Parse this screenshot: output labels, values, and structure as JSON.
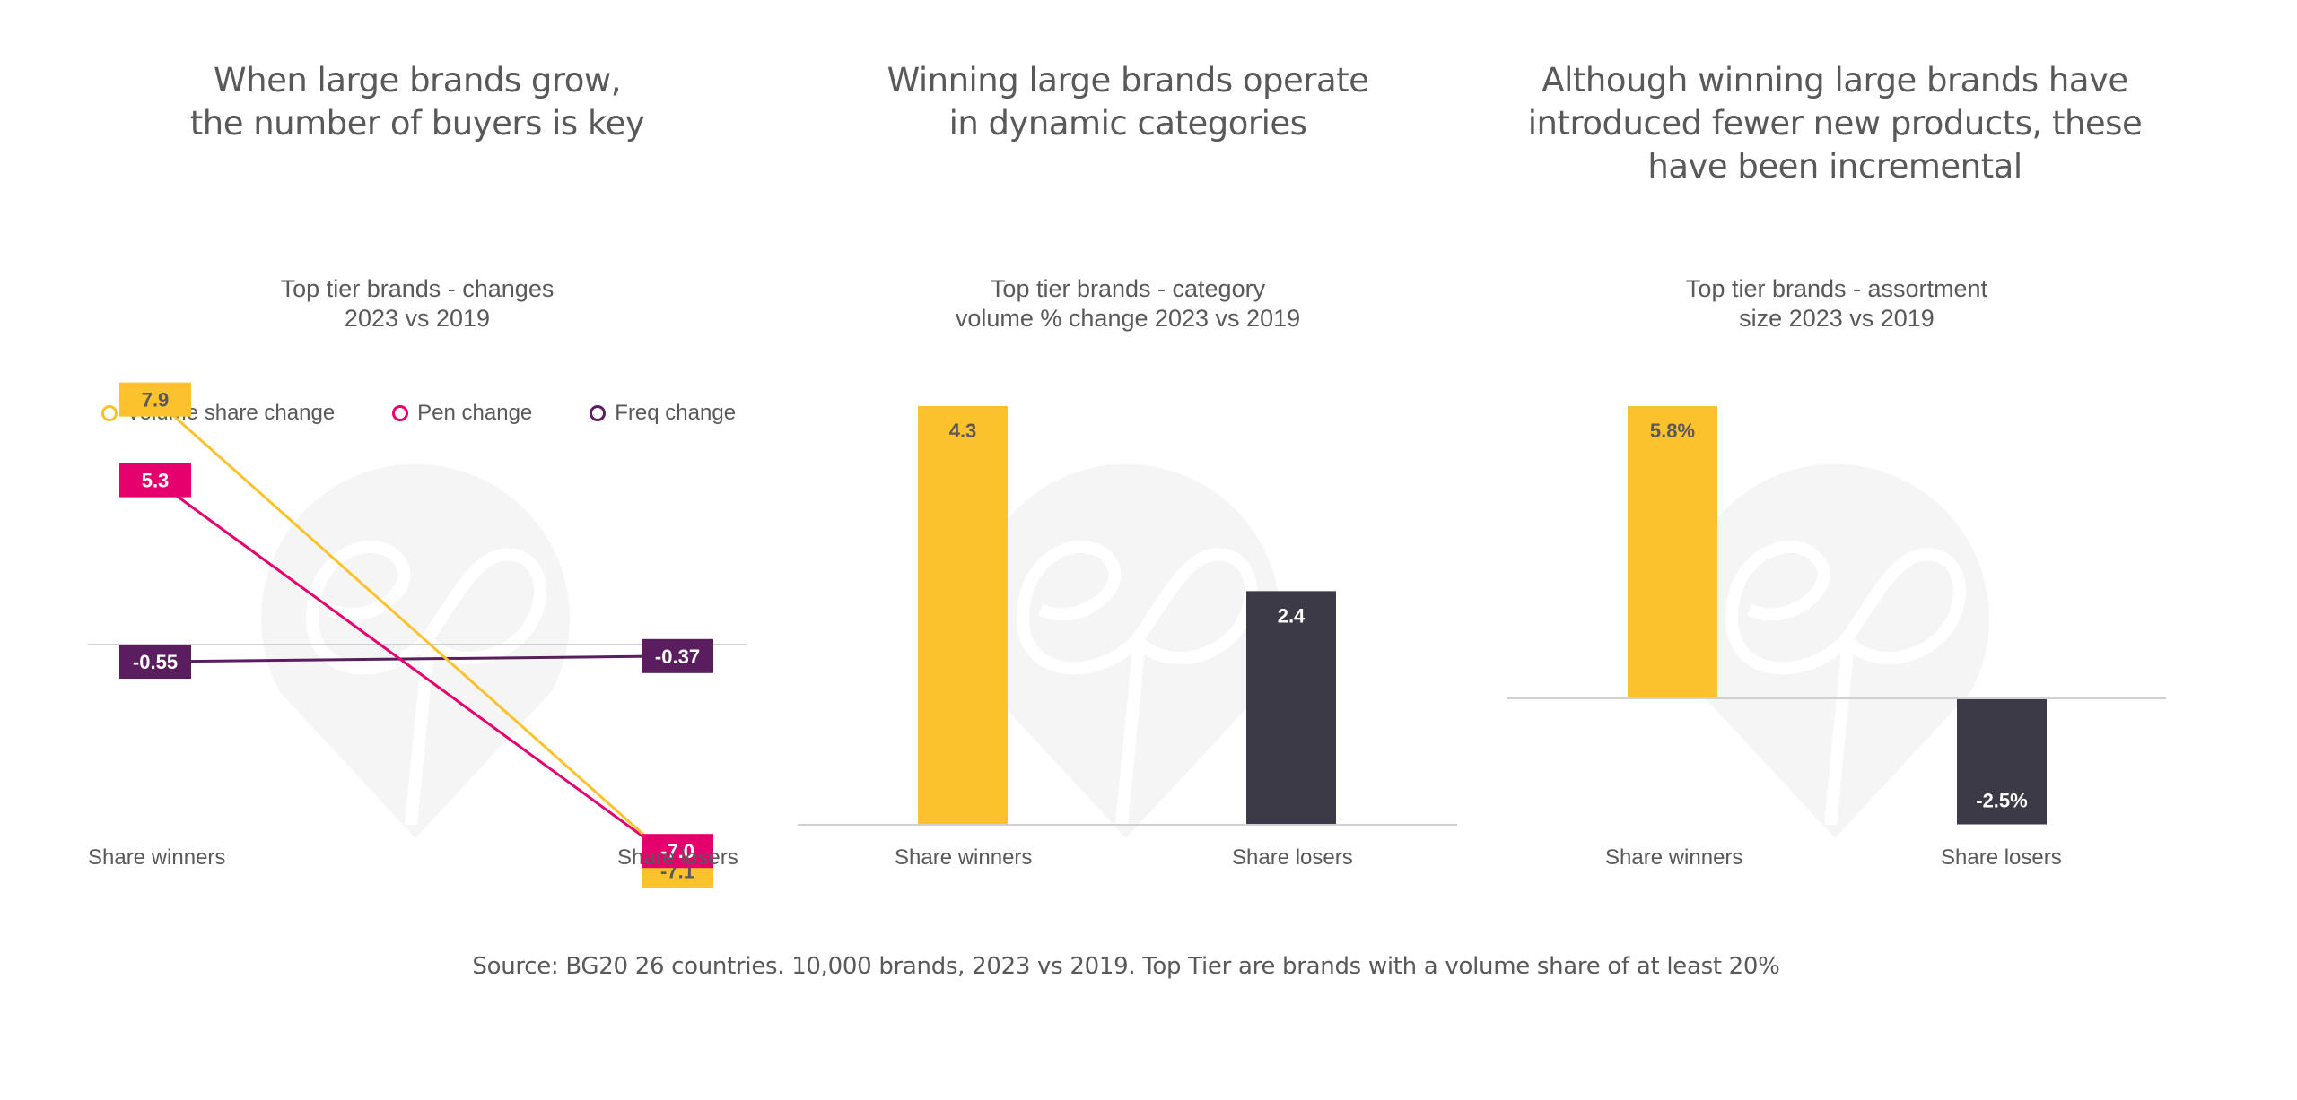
{
  "headings": [
    "When large brands grow,\nthe number of buyers is key",
    "Winning large brands operate\nin dynamic categories",
    "Although winning large brands have\nintroduced fewer new products, these\nhave been incremental"
  ],
  "source_note": "Source: BG20 26 countries. 10,000 brands, 2023 vs 2019. Top Tier are brands with a volume share of at least 20%",
  "colors": {
    "yellow": "#FBC22D",
    "pink": "#E6006E",
    "purple": "#5A1E5E",
    "dark": "#3C3A47",
    "text": "#595959"
  },
  "chart_data": [
    {
      "type": "line",
      "title": "Top tier brands - changes\n2023 vs 2019",
      "categories": [
        "Share winners",
        "Share losers"
      ],
      "series": [
        {
          "name": "Volume share change",
          "values": [
            7.9,
            -7.1
          ],
          "labels": [
            "7.9",
            "-7.1"
          ],
          "color": "#FBC22D"
        },
        {
          "name": "Pen change",
          "values": [
            5.3,
            -7.0
          ],
          "labels": [
            "5.3",
            "-7.0"
          ],
          "color": "#E6006E"
        },
        {
          "name": "Freq change",
          "values": [
            -0.55,
            -0.37
          ],
          "labels": [
            "-0.55",
            "-0.37"
          ],
          "color": "#5A1E5E"
        }
      ],
      "legend": "top",
      "ylim": [
        -12,
        12
      ],
      "grid": false
    },
    {
      "type": "bar",
      "title": "Top tier brands - category\nvolume % change 2023 vs 2019",
      "categories": [
        "Share winners",
        "Share losers"
      ],
      "values": [
        4.3,
        2.4
      ],
      "labels": [
        "4.3",
        "2.4"
      ],
      "colors": [
        "#FBC22D",
        "#3C3A47"
      ],
      "ylim": [
        0,
        4.3
      ],
      "grid": false
    },
    {
      "type": "bar",
      "title": "Top tier brands - assortment\nsize 2023 vs 2019",
      "categories": [
        "Share winners",
        "Share losers"
      ],
      "values": [
        5.8,
        -2.5
      ],
      "labels": [
        "5.8%",
        "-2.5%"
      ],
      "colors": [
        "#FBC22D",
        "#3C3A47"
      ],
      "ylim": [
        -2.5,
        5.8
      ],
      "grid": false
    }
  ]
}
